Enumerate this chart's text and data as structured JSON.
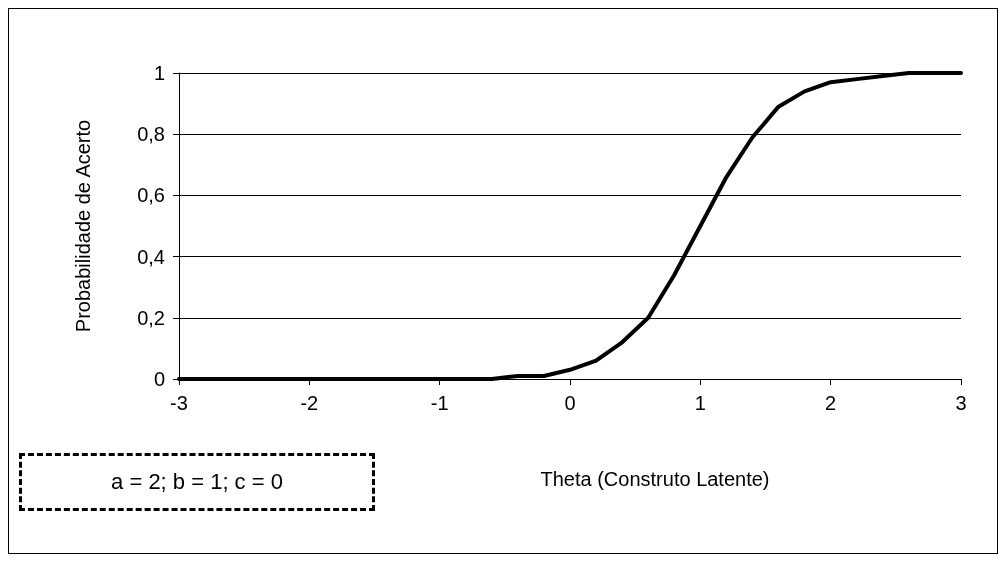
{
  "chart_data": {
    "type": "line",
    "xlabel": "Theta (Construto Latente)",
    "ylabel": "Probabilidade de Acerto",
    "x": [
      -3,
      -2.6,
      -2.2,
      -1.8,
      -1.4,
      -1,
      -0.8,
      -0.6,
      -0.4,
      -0.2,
      0,
      0.2,
      0.4,
      0.6,
      0.8,
      1,
      1.2,
      1.4,
      1.6,
      1.8,
      2,
      2.2,
      2.4,
      2.6,
      2.8,
      3
    ],
    "series": [
      {
        "color": "#000000",
        "values": [
          0,
          0,
          0,
          0,
          0,
          0,
          0,
          0,
          0.01,
          0.01,
          0.03,
          0.06,
          0.12,
          0.2,
          0.34,
          0.5,
          0.66,
          0.79,
          0.89,
          0.94,
          0.97,
          0.98,
          0.99,
          1,
          1,
          1
        ]
      }
    ],
    "xlim": [
      -3,
      3
    ],
    "xticks": [
      -3,
      -2,
      -1,
      0,
      1,
      2,
      3
    ],
    "ylim": [
      0,
      1
    ],
    "yticks": [
      0,
      {
        "value": 0.2,
        "label": "0,2"
      },
      {
        "value": 0.4,
        "label": "0,4"
      },
      {
        "value": 0.6,
        "label": "0,6"
      },
      {
        "value": 0.8,
        "label": "0,8"
      },
      1
    ],
    "grid": "y",
    "marker": "none",
    "line_style": "solid",
    "annotations": [
      "a = 2; b = 1; c = 0"
    ]
  }
}
